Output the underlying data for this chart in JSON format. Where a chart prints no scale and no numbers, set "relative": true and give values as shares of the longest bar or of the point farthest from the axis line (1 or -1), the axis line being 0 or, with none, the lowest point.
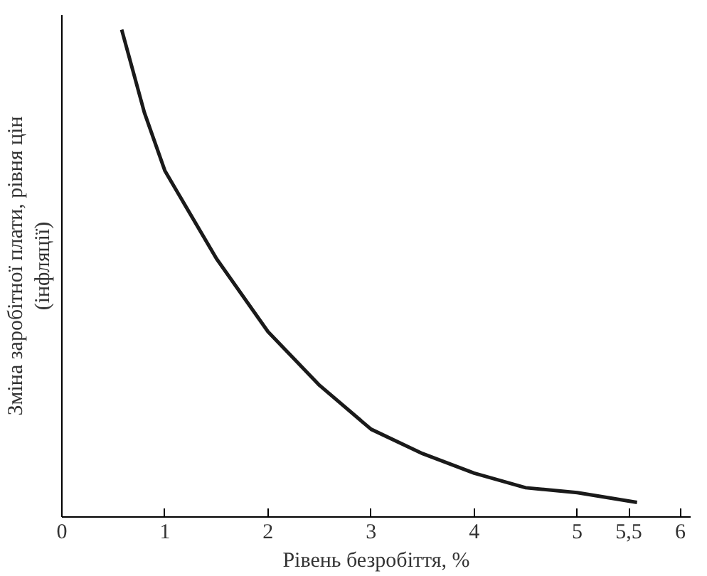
{
  "chart_data": {
    "type": "line",
    "relative": true,
    "xlabel": "Рівень безробіття, %",
    "ylabel": "Зміна заробітної плати, рівня цін\n(інфляції)",
    "x": [
      0.58,
      0.8,
      1,
      1.5,
      2,
      2.5,
      3,
      3.5,
      4,
      4.5,
      5,
      5.58
    ],
    "series": [
      {
        "color": "#1a1a1a",
        "values": [
          1.0,
          0.83,
          0.71,
          0.53,
          0.38,
          0.27,
          0.18,
          0.13,
          0.09,
          0.06,
          0.05,
          0.03
        ]
      }
    ],
    "xlim": [
      0,
      6.1
    ],
    "xticks": [
      0,
      1,
      2,
      3,
      4,
      5,
      {
        "value": 5.5,
        "label": "5,5"
      },
      6
    ],
    "grid": false,
    "marker": "none",
    "line_style": "solid"
  }
}
